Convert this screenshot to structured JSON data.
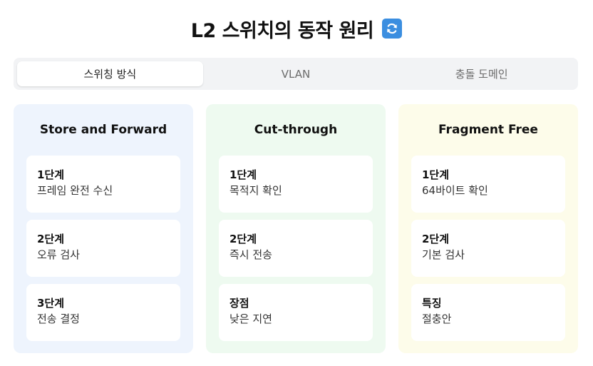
{
  "header": {
    "title": "L2 스위치의 동작 원리",
    "icon": "refresh-icon"
  },
  "tabs": [
    {
      "label": "스위칭 방식",
      "active": true
    },
    {
      "label": "VLAN",
      "active": false
    },
    {
      "label": "충돌 도메인",
      "active": false
    }
  ],
  "columns": [
    {
      "title": "Store and Forward",
      "cards": [
        {
          "heading": "1단계",
          "text": "프레임 완전 수신"
        },
        {
          "heading": "2단계",
          "text": "오류 검사"
        },
        {
          "heading": "3단계",
          "text": "전송 결정"
        }
      ]
    },
    {
      "title": "Cut-through",
      "cards": [
        {
          "heading": "1단계",
          "text": "목적지 확인"
        },
        {
          "heading": "2단계",
          "text": "즉시 전송"
        },
        {
          "heading": "장점",
          "text": "낮은 지연"
        }
      ]
    },
    {
      "title": "Fragment Free",
      "cards": [
        {
          "heading": "1단계",
          "text": "64바이트 확인"
        },
        {
          "heading": "2단계",
          "text": "기본 검사"
        },
        {
          "heading": "특징",
          "text": "절충안"
        }
      ]
    }
  ],
  "colors": {
    "accent": "#3b8ee0",
    "column_1_bg": "#eef4fd",
    "column_2_bg": "#eefaf0",
    "column_3_bg": "#fdfcea"
  }
}
